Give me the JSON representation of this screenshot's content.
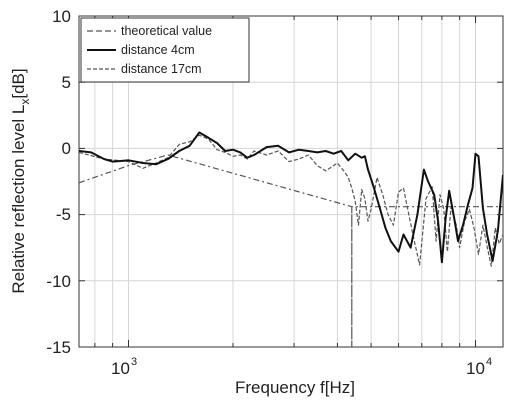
{
  "chart_data": {
    "type": "line",
    "title": "",
    "xlabel": "Frequency f[Hz]",
    "ylabel": "Relative reflection level L",
    "ylabel_subscript": "x",
    "ylabel_unit": "[dB]",
    "x_scale": "log",
    "xlim": [
      720,
      12000
    ],
    "ylim": [
      -15,
      10
    ],
    "y_ticks": [
      10,
      5,
      0,
      -5,
      -10,
      -15
    ],
    "y_tick_labels": [
      "10",
      "5",
      "0",
      "-5",
      "-10",
      "-15"
    ],
    "x_tick_labels": [
      {
        "value": 1000,
        "base": "10",
        "exponent": "3"
      },
      {
        "value": 10000,
        "base": "10",
        "exponent": "4"
      }
    ],
    "grid": true,
    "legend_position": "top-left",
    "series": [
      {
        "name": "theoretical value",
        "style": "dash-dot",
        "color": "#555555",
        "x": [
          720,
          1000,
          1300,
          4400,
          4400,
          4400,
          12000
        ],
        "y": [
          -2.6,
          -1.3,
          -0.5,
          -4.4,
          -15,
          -4.4,
          -4.4
        ]
      },
      {
        "name": "distance 4cm",
        "style": "solid",
        "color": "#111111",
        "x": [
          720,
          780,
          850,
          900,
          1000,
          1100,
          1200,
          1300,
          1400,
          1500,
          1600,
          1700,
          1800,
          1900,
          2000,
          2100,
          2200,
          2300,
          2500,
          2700,
          2900,
          3100,
          3300,
          3500,
          3700,
          3900,
          4100,
          4300,
          4500,
          4700,
          4800,
          4900,
          5100,
          5300,
          5500,
          5700,
          6000,
          6200,
          6500,
          6800,
          7100,
          7300,
          7600,
          7800,
          8000,
          8200,
          8400,
          8700,
          8900,
          9200,
          9500,
          9800,
          10000,
          10200,
          10500,
          10800,
          11200,
          11600,
          12000
        ],
        "y": [
          -0.2,
          -0.3,
          -0.8,
          -1.0,
          -0.9,
          -1.1,
          -1.2,
          -0.8,
          -0.2,
          0.2,
          1.2,
          0.8,
          0.4,
          -0.2,
          -0.1,
          -0.3,
          -0.7,
          -0.5,
          0.1,
          0.2,
          -0.3,
          -0.1,
          -0.2,
          -0.3,
          -0.2,
          -0.4,
          -0.2,
          -0.9,
          -0.4,
          -0.7,
          -0.6,
          -1.6,
          -3.0,
          -4.5,
          -6.0,
          -7.0,
          -7.8,
          -6.5,
          -7.5,
          -5.0,
          -1.6,
          -2.5,
          -3.5,
          -5.5,
          -8.6,
          -5.3,
          -3.2,
          -5.4,
          -7.0,
          -5.8,
          -4.3,
          -3.0,
          -0.4,
          -0.6,
          -4.5,
          -6.5,
          -8.5,
          -6.2,
          -2.0
        ]
      },
      {
        "name": "distance 17cm",
        "style": "dashed",
        "color": "#555555",
        "x": [
          720,
          850,
          1000,
          1100,
          1200,
          1300,
          1400,
          1500,
          1600,
          1700,
          1800,
          1900,
          2000,
          2100,
          2200,
          2300,
          2500,
          2700,
          2900,
          3100,
          3300,
          3500,
          3700,
          3900,
          4000,
          4200,
          4300,
          4400,
          4500,
          4600,
          4700,
          4800,
          4900,
          5000,
          5200,
          5400,
          5600,
          5800,
          6000,
          6200,
          6400,
          6600,
          6900,
          7200,
          7500,
          7700,
          7900,
          8100,
          8300,
          8500,
          8800,
          9000,
          9300,
          9600,
          9900,
          10200,
          10500,
          10800,
          11100,
          11400,
          11700,
          12000
        ],
        "y": [
          -0.3,
          -0.8,
          -1.0,
          -1.5,
          -1.1,
          -0.7,
          0.3,
          0.5,
          1.0,
          0.7,
          -0.1,
          -0.3,
          -0.6,
          -0.5,
          -0.8,
          -0.2,
          -0.5,
          -0.2,
          -1.0,
          -0.8,
          -0.5,
          -1.3,
          -1.7,
          -1.3,
          -1.1,
          -1.8,
          -2.2,
          -3.0,
          -4.0,
          -5.8,
          -3.1,
          -3.8,
          -5.5,
          -4.6,
          -2.2,
          -3.5,
          -5.0,
          -5.8,
          -3.3,
          -3.0,
          -4.8,
          -6.5,
          -8.8,
          -3.8,
          -2.9,
          -7.0,
          -3.5,
          -4.6,
          -7.8,
          -4.4,
          -5.8,
          -7.5,
          -5.5,
          -4.6,
          -6.0,
          -8.0,
          -5.8,
          -7.4,
          -8.9,
          -6.0,
          -7.2,
          -6.5
        ]
      }
    ]
  }
}
